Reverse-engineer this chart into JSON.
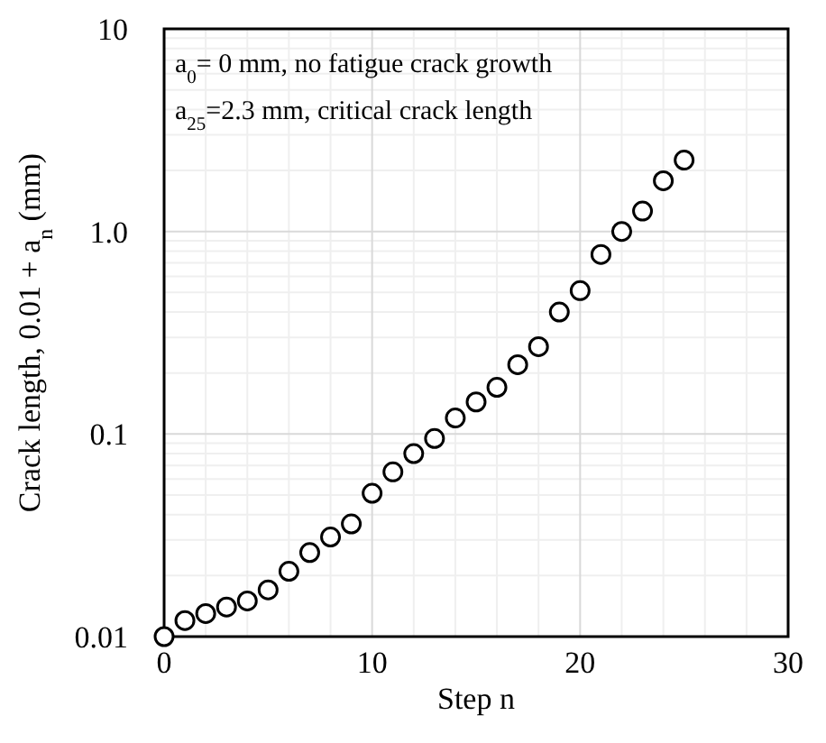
{
  "chart_data": {
    "type": "scatter",
    "xlabel": "Step n",
    "ylabel": "Crack length, 0.01 + a$_{n}$ (mm)",
    "x": [
      0,
      1,
      2,
      3,
      4,
      5,
      6,
      7,
      8,
      9,
      10,
      11,
      12,
      13,
      14,
      15,
      16,
      17,
      18,
      19,
      20,
      21,
      22,
      23,
      24,
      25
    ],
    "series": [
      {
        "color": "#000000",
        "values": [
          0.01,
          0.012,
          0.013,
          0.014,
          0.015,
          0.017,
          0.021,
          0.026,
          0.031,
          0.036,
          0.051,
          0.065,
          0.08,
          0.095,
          0.12,
          0.144,
          0.17,
          0.22,
          0.27,
          0.4,
          0.51,
          0.77,
          1.0,
          1.26,
          1.78,
          2.25
        ]
      }
    ],
    "xlim": [
      0,
      30
    ],
    "xticks": [
      0,
      10,
      20,
      30
    ],
    "ylim": [
      0.01,
      10
    ],
    "yticks": [
      0.01,
      0.1,
      {
        "value": 1,
        "label": "1.0"
      },
      10
    ],
    "log": "y",
    "grid": true,
    "marker": "circle",
    "annotations": [
      "a$_{0}$= 0 mm, no fatigue crack growth",
      "a$_{25}$=2.3 mm, critical crack length"
    ]
  }
}
